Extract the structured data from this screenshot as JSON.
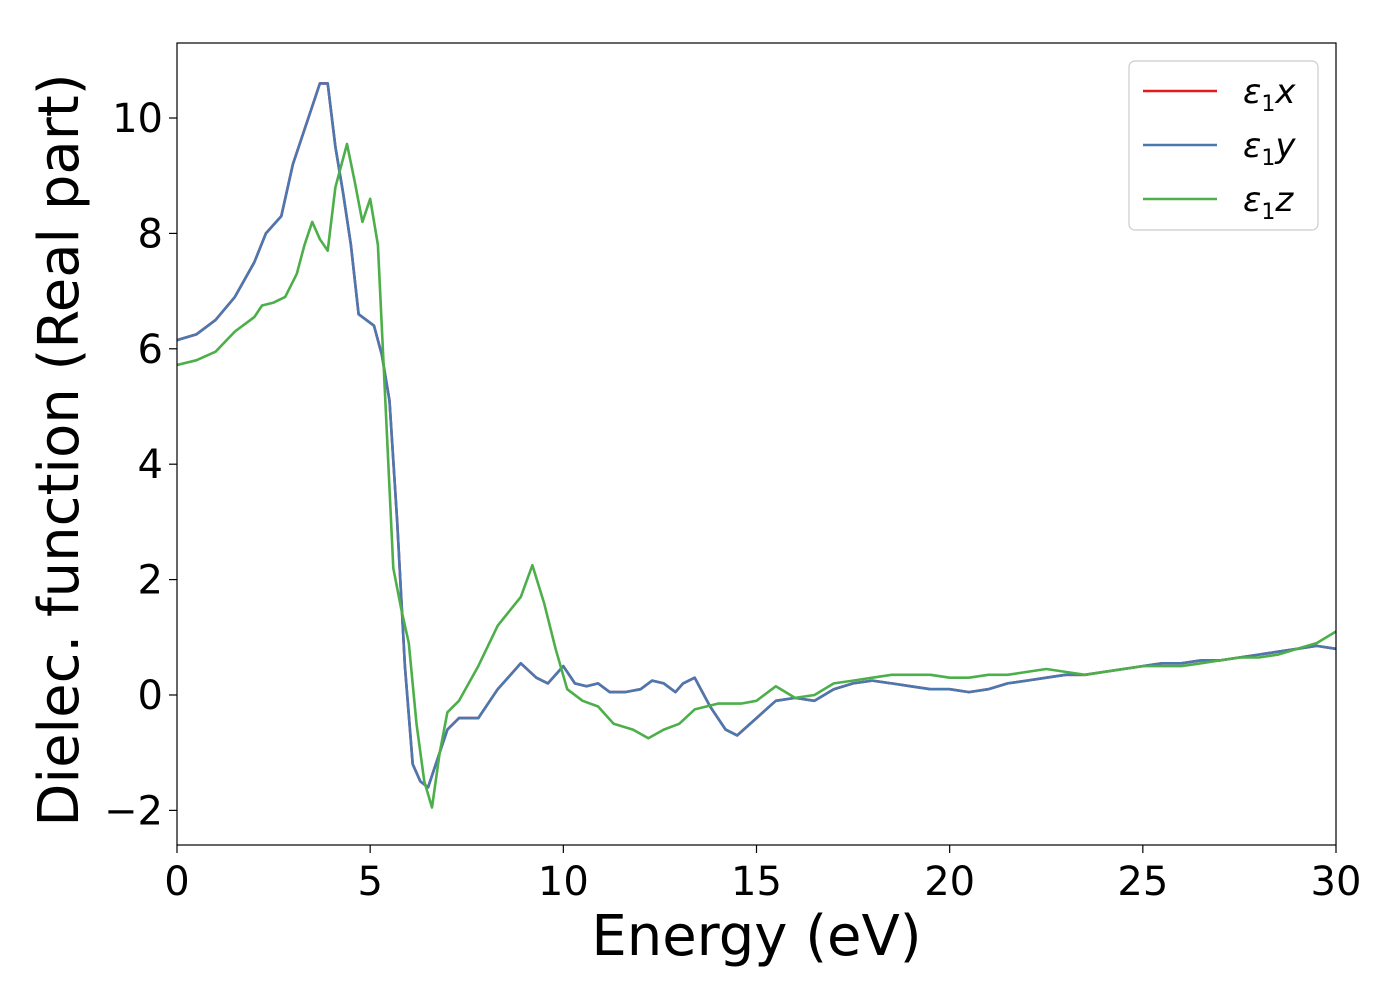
{
  "chart_data": {
    "type": "line",
    "title": "",
    "xlabel": "Energy (eV)",
    "ylabel": "Dielec. function (Real part)",
    "xlim": [
      0,
      30
    ],
    "ylim": [
      -2.6,
      11.3
    ],
    "xticks": [
      0,
      5,
      10,
      15,
      20,
      25,
      30
    ],
    "xtick_labels": [
      "0",
      "5",
      "10",
      "15",
      "20",
      "25",
      "30"
    ],
    "yticks": [
      -2,
      0,
      2,
      4,
      6,
      8,
      10
    ],
    "ytick_labels": [
      "−2",
      "0",
      "2",
      "4",
      "6",
      "8",
      "10"
    ],
    "grid": false,
    "legend_position": "top-right",
    "series": [
      {
        "name": "ε1x",
        "legend_main": "ε",
        "legend_sub": "1",
        "legend_suffix": "x",
        "color": "#e41a1c",
        "x": [
          0,
          0.5,
          1,
          1.5,
          2,
          2.3,
          2.7,
          3,
          3.3,
          3.5,
          3.7,
          3.9,
          4.1,
          4.3,
          4.5,
          4.7,
          4.9,
          5.1,
          5.3,
          5.5,
          5.7,
          5.9,
          6.1,
          6.3,
          6.5,
          6.7,
          7,
          7.3,
          7.8,
          8.3,
          8.9,
          9.3,
          9.6,
          10,
          10.3,
          10.6,
          10.9,
          11.2,
          11.6,
          12,
          12.3,
          12.6,
          12.9,
          13.1,
          13.4,
          13.8,
          14.2,
          14.5,
          15,
          15.5,
          16,
          16.5,
          17,
          17.5,
          18,
          18.5,
          19,
          19.5,
          20,
          20.5,
          21,
          21.5,
          22,
          22.5,
          23,
          23.5,
          24,
          24.5,
          25,
          25.5,
          26,
          26.5,
          27,
          27.5,
          28,
          28.5,
          29,
          29.5,
          30
        ],
        "y": [
          6.15,
          6.25,
          6.5,
          6.9,
          7.5,
          8.0,
          8.3,
          9.2,
          9.8,
          10.2,
          10.6,
          10.6,
          9.5,
          8.7,
          7.8,
          6.6,
          6.5,
          6.4,
          5.9,
          5.1,
          3.0,
          0.5,
          -1.2,
          -1.5,
          -1.6,
          -1.2,
          -0.6,
          -0.4,
          -0.4,
          0.1,
          0.55,
          0.3,
          0.2,
          0.5,
          0.2,
          0.15,
          0.2,
          0.05,
          0.05,
          0.1,
          0.25,
          0.2,
          0.05,
          0.2,
          0.3,
          -0.2,
          -0.6,
          -0.7,
          -0.4,
          -0.1,
          -0.05,
          -0.1,
          0.1,
          0.2,
          0.25,
          0.2,
          0.15,
          0.1,
          0.1,
          0.05,
          0.1,
          0.2,
          0.25,
          0.3,
          0.35,
          0.35,
          0.4,
          0.45,
          0.5,
          0.55,
          0.55,
          0.6,
          0.6,
          0.65,
          0.7,
          0.75,
          0.8,
          0.85,
          0.8
        ]
      },
      {
        "name": "ε1y",
        "legend_main": "ε",
        "legend_sub": "1",
        "legend_suffix": "y",
        "color": "#4a78b0",
        "x": [
          0,
          0.5,
          1,
          1.5,
          2,
          2.3,
          2.7,
          3,
          3.3,
          3.5,
          3.7,
          3.9,
          4.1,
          4.3,
          4.5,
          4.7,
          4.9,
          5.1,
          5.3,
          5.5,
          5.7,
          5.9,
          6.1,
          6.3,
          6.5,
          6.7,
          7,
          7.3,
          7.8,
          8.3,
          8.9,
          9.3,
          9.6,
          10,
          10.3,
          10.6,
          10.9,
          11.2,
          11.6,
          12,
          12.3,
          12.6,
          12.9,
          13.1,
          13.4,
          13.8,
          14.2,
          14.5,
          15,
          15.5,
          16,
          16.5,
          17,
          17.5,
          18,
          18.5,
          19,
          19.5,
          20,
          20.5,
          21,
          21.5,
          22,
          22.5,
          23,
          23.5,
          24,
          24.5,
          25,
          25.5,
          26,
          26.5,
          27,
          27.5,
          28,
          28.5,
          29,
          29.5,
          30
        ],
        "y": [
          6.15,
          6.25,
          6.5,
          6.9,
          7.5,
          8.0,
          8.3,
          9.2,
          9.8,
          10.2,
          10.6,
          10.6,
          9.5,
          8.7,
          7.8,
          6.6,
          6.5,
          6.4,
          5.9,
          5.1,
          3.0,
          0.5,
          -1.2,
          -1.5,
          -1.6,
          -1.2,
          -0.6,
          -0.4,
          -0.4,
          0.1,
          0.55,
          0.3,
          0.2,
          0.5,
          0.2,
          0.15,
          0.2,
          0.05,
          0.05,
          0.1,
          0.25,
          0.2,
          0.05,
          0.2,
          0.3,
          -0.2,
          -0.6,
          -0.7,
          -0.4,
          -0.1,
          -0.05,
          -0.1,
          0.1,
          0.2,
          0.25,
          0.2,
          0.15,
          0.1,
          0.1,
          0.05,
          0.1,
          0.2,
          0.25,
          0.3,
          0.35,
          0.35,
          0.4,
          0.45,
          0.5,
          0.55,
          0.55,
          0.6,
          0.6,
          0.65,
          0.7,
          0.75,
          0.8,
          0.85,
          0.8
        ]
      },
      {
        "name": "ε1z",
        "legend_main": "ε",
        "legend_sub": "1",
        "legend_suffix": "z",
        "color": "#4daf4a",
        "x": [
          0,
          0.5,
          1,
          1.5,
          2,
          2.2,
          2.5,
          2.8,
          3.1,
          3.3,
          3.5,
          3.7,
          3.9,
          4.1,
          4.4,
          4.6,
          4.8,
          5.0,
          5.2,
          5.4,
          5.6,
          5.8,
          6.0,
          6.2,
          6.4,
          6.6,
          6.8,
          7.0,
          7.3,
          7.8,
          8.3,
          8.9,
          9.2,
          9.5,
          9.8,
          10.1,
          10.5,
          10.9,
          11.3,
          11.8,
          12.2,
          12.6,
          13.0,
          13.4,
          14.0,
          14.6,
          15.0,
          15.5,
          16.0,
          16.5,
          17.0,
          17.5,
          18.0,
          18.5,
          19.0,
          19.5,
          20.0,
          20.5,
          21.0,
          21.5,
          22.0,
          22.5,
          23.0,
          23.5,
          24.0,
          24.5,
          25.0,
          25.5,
          26.0,
          26.5,
          27.0,
          27.5,
          28.0,
          28.5,
          29.0,
          29.5,
          30.0
        ],
        "y": [
          5.72,
          5.8,
          5.95,
          6.3,
          6.55,
          6.75,
          6.8,
          6.9,
          7.3,
          7.8,
          8.2,
          7.9,
          7.7,
          8.8,
          9.55,
          8.9,
          8.2,
          8.6,
          7.8,
          5.0,
          2.2,
          1.5,
          0.9,
          -0.5,
          -1.5,
          -1.95,
          -1.0,
          -0.3,
          -0.1,
          0.5,
          1.2,
          1.7,
          2.25,
          1.6,
          0.8,
          0.1,
          -0.1,
          -0.2,
          -0.5,
          -0.6,
          -0.75,
          -0.6,
          -0.5,
          -0.25,
          -0.15,
          -0.15,
          -0.1,
          0.15,
          -0.05,
          0.0,
          0.2,
          0.25,
          0.3,
          0.35,
          0.35,
          0.35,
          0.3,
          0.3,
          0.35,
          0.35,
          0.4,
          0.45,
          0.4,
          0.35,
          0.4,
          0.45,
          0.5,
          0.5,
          0.5,
          0.55,
          0.6,
          0.65,
          0.65,
          0.7,
          0.8,
          0.9,
          1.1
        ]
      }
    ]
  }
}
